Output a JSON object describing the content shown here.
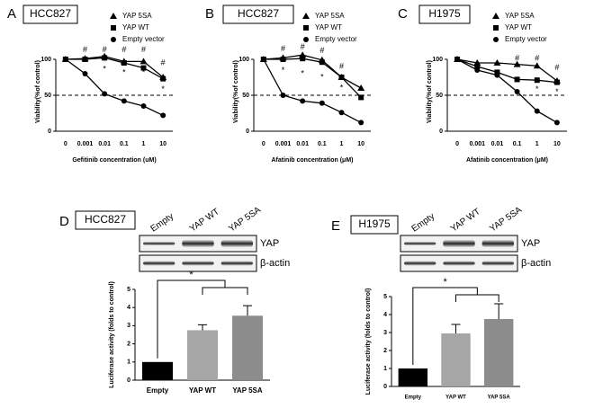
{
  "chart_data": [
    {
      "type": "line",
      "panel": "A",
      "title": "HCC827",
      "ylabel": "Viability(%of control)",
      "xlabel": "Gefitinib concentration (uM)",
      "categories": [
        "0",
        "0.001",
        "0.01",
        "0.1",
        "1",
        "10"
      ],
      "ylim": [
        0,
        125
      ],
      "yticks": [
        0,
        50,
        100
      ],
      "reference_line": 50,
      "series": [
        {
          "name": "YAP 5SA",
          "marker": "triangle",
          "color": "#000000",
          "values": [
            100,
            101,
            104,
            97,
            97,
            75
          ]
        },
        {
          "name": "YAP WT",
          "marker": "square",
          "color": "#000000",
          "values": [
            100,
            100,
            102,
            95,
            88,
            73
          ]
        },
        {
          "name": "Empty vector",
          "marker": "circle",
          "color": "#000000",
          "values": [
            100,
            80,
            52,
            42,
            35,
            22
          ]
        }
      ],
      "annotations": [
        {
          "text": "#",
          "x": "0.001",
          "y": 113
        },
        {
          "text": "#",
          "x": "0.01",
          "y": 113
        },
        {
          "text": "#",
          "x": "0.1",
          "y": 113
        },
        {
          "text": "#",
          "x": "1",
          "y": 113
        },
        {
          "text": "#",
          "x": "10",
          "y": 95
        },
        {
          "text": "*",
          "x": "0.01",
          "y": 86
        },
        {
          "text": "*",
          "x": "0.1",
          "y": 81
        },
        {
          "text": "*",
          "x": "1",
          "y": 81
        },
        {
          "text": "*",
          "x": "10",
          "y": 58
        }
      ]
    },
    {
      "type": "line",
      "panel": "B",
      "title": "HCC827",
      "ylabel": "Viability(%of control)",
      "xlabel": "Afatinib concentration (μM)",
      "categories": [
        "0",
        "0.001",
        "0.01",
        "0.1",
        "1",
        "10"
      ],
      "ylim": [
        0,
        125
      ],
      "yticks": [
        0,
        50,
        100
      ],
      "reference_line": 50,
      "series": [
        {
          "name": "YAP 5SA",
          "marker": "triangle",
          "color": "#000000",
          "values": [
            100,
            102,
            106,
            99,
            75,
            60
          ]
        },
        {
          "name": "YAP WT",
          "marker": "square",
          "color": "#000000",
          "values": [
            100,
            100,
            101,
            96,
            75,
            47
          ]
        },
        {
          "name": "Empty vector",
          "marker": "circle",
          "color": "#000000",
          "values": [
            100,
            50,
            42,
            39,
            26,
            12
          ]
        }
      ],
      "annotations": [
        {
          "text": "#",
          "x": "0.001",
          "y": 114
        },
        {
          "text": "#",
          "x": "0.01",
          "y": 117
        },
        {
          "text": "#",
          "x": "0.1",
          "y": 112
        },
        {
          "text": "#",
          "x": "1",
          "y": 90
        },
        {
          "text": "*",
          "x": "0.001",
          "y": 84
        },
        {
          "text": "*",
          "x": "0.01",
          "y": 80
        },
        {
          "text": "*",
          "x": "0.1",
          "y": 75
        },
        {
          "text": "*",
          "x": "1",
          "y": 60
        }
      ]
    },
    {
      "type": "line",
      "panel": "C",
      "title": "H1975",
      "ylabel": "Viability(%of control)",
      "xlabel": "Afatinib concentration (μM)",
      "categories": [
        "0",
        "0.001",
        "0.01",
        "0.1",
        "1",
        "10"
      ],
      "ylim": [
        0,
        125
      ],
      "yticks": [
        0,
        50,
        100
      ],
      "reference_line": 50,
      "series": [
        {
          "name": "YAP 5SA",
          "marker": "triangle",
          "color": "#000000",
          "values": [
            100,
            95,
            95,
            93,
            91,
            70
          ]
        },
        {
          "name": "YAP WT",
          "marker": "square",
          "color": "#000000",
          "values": [
            100,
            90,
            82,
            72,
            71,
            68
          ]
        },
        {
          "name": "Empty vector",
          "marker": "circle",
          "color": "#000000",
          "values": [
            100,
            85,
            78,
            55,
            28,
            12
          ]
        }
      ],
      "annotations": [
        {
          "text": "#",
          "x": "0.1",
          "y": 101
        },
        {
          "text": "#",
          "x": "1",
          "y": 101
        },
        {
          "text": "#",
          "x": "10",
          "y": 88
        },
        {
          "text": "*",
          "x": "1",
          "y": 58
        },
        {
          "text": "*",
          "x": "10",
          "y": 54
        }
      ]
    },
    {
      "type": "bar",
      "panel": "D",
      "title": "HCC827",
      "ylabel": "Luciferase activity (folds to control)",
      "blot": {
        "lanes": [
          "Empty",
          "YAP WT",
          "YAP 5SA"
        ],
        "rows": [
          "YAP",
          "β-actin"
        ]
      },
      "categories": [
        "Empty",
        "YAP WT",
        "YAP 5SA"
      ],
      "values": [
        1,
        2.75,
        3.55
      ],
      "errors": [
        0,
        0.3,
        0.55
      ],
      "colors": [
        "#000000",
        "#a6a6a6",
        "#8c8c8c"
      ],
      "ylim": [
        0,
        5
      ],
      "yticks": [
        0,
        1,
        2,
        3,
        4,
        5
      ],
      "significance": "*"
    },
    {
      "type": "bar",
      "panel": "E",
      "title": "H1975",
      "ylabel": "Luciferase activity (folds to control)",
      "blot": {
        "lanes": [
          "Empty",
          "YAP WT",
          "YAP 5SA"
        ],
        "rows": [
          "YAP",
          "β-actin"
        ]
      },
      "categories": [
        "Empty",
        "YAP WT",
        "YAP 5SA"
      ],
      "values": [
        1,
        2.95,
        3.75
      ],
      "errors": [
        0,
        0.5,
        0.85
      ],
      "colors": [
        "#000000",
        "#a6a6a6",
        "#8c8c8c"
      ],
      "ylim": [
        0,
        5
      ],
      "yticks": [
        0,
        1,
        2,
        3,
        4,
        5
      ],
      "significance": "*"
    }
  ]
}
